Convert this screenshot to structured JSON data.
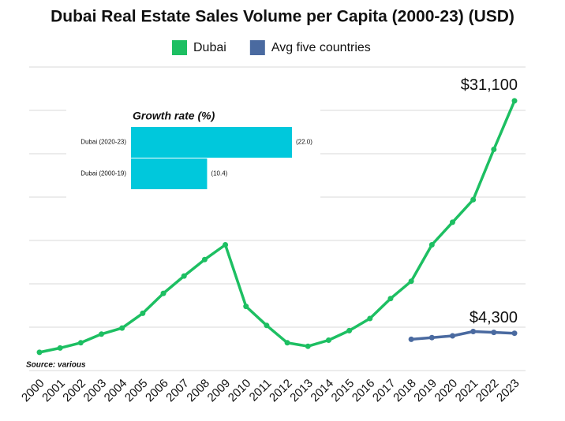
{
  "chart_data": [
    {
      "type": "line",
      "title": "Dubai Real Estate Sales Volume per Capita (2000-23) (USD)",
      "source": "Source: various",
      "categories": [
        "2000",
        "2001",
        "2002",
        "2003",
        "2004",
        "2005",
        "2006",
        "2007",
        "2008",
        "2009",
        "2010",
        "2011",
        "2012",
        "2013",
        "2014",
        "2015",
        "2016",
        "2017",
        "2018",
        "2019",
        "2020",
        "2021",
        "2022",
        "2023"
      ],
      "series": [
        {
          "name": "Dubai",
          "color": "#1dbf62",
          "values": [
            2100,
            2600,
            3200,
            4200,
            4900,
            6600,
            8900,
            10900,
            12800,
            14500,
            7400,
            5200,
            3200,
            2800,
            3500,
            4600,
            6000,
            8300,
            10300,
            14500,
            17100,
            19700,
            25500,
            31100
          ],
          "value_labels": [
            null,
            null,
            null,
            null,
            null,
            null,
            null,
            null,
            null,
            null,
            null,
            null,
            null,
            null,
            null,
            null,
            null,
            null,
            null,
            null,
            null,
            null,
            null,
            "$31,100"
          ]
        },
        {
          "name": "Avg five countries",
          "color": "#4a6aa0",
          "values": [
            null,
            null,
            null,
            null,
            null,
            null,
            null,
            null,
            null,
            null,
            null,
            null,
            null,
            null,
            null,
            null,
            null,
            null,
            3600,
            3800,
            4000,
            4500,
            4400,
            4300
          ],
          "value_labels": [
            null,
            null,
            null,
            null,
            null,
            null,
            null,
            null,
            null,
            null,
            null,
            null,
            null,
            null,
            null,
            null,
            null,
            null,
            null,
            null,
            null,
            null,
            null,
            "$4,300"
          ]
        }
      ],
      "ylim": [
        0,
        35000
      ],
      "yticks": [
        0,
        5000,
        10000,
        15000,
        20000,
        25000,
        30000,
        35000
      ],
      "grid": true,
      "legend": "top"
    },
    {
      "type": "bar",
      "title": "Growth rate (%)",
      "categories": [
        "Dubai (2020-23)",
        "Dubai (2000-19)"
      ],
      "values": [
        22.0,
        10.4
      ],
      "value_labels": [
        "(22.0)",
        "(10.4)"
      ],
      "color": "#00c8dc",
      "xlim": [
        0,
        22.0
      ]
    }
  ]
}
